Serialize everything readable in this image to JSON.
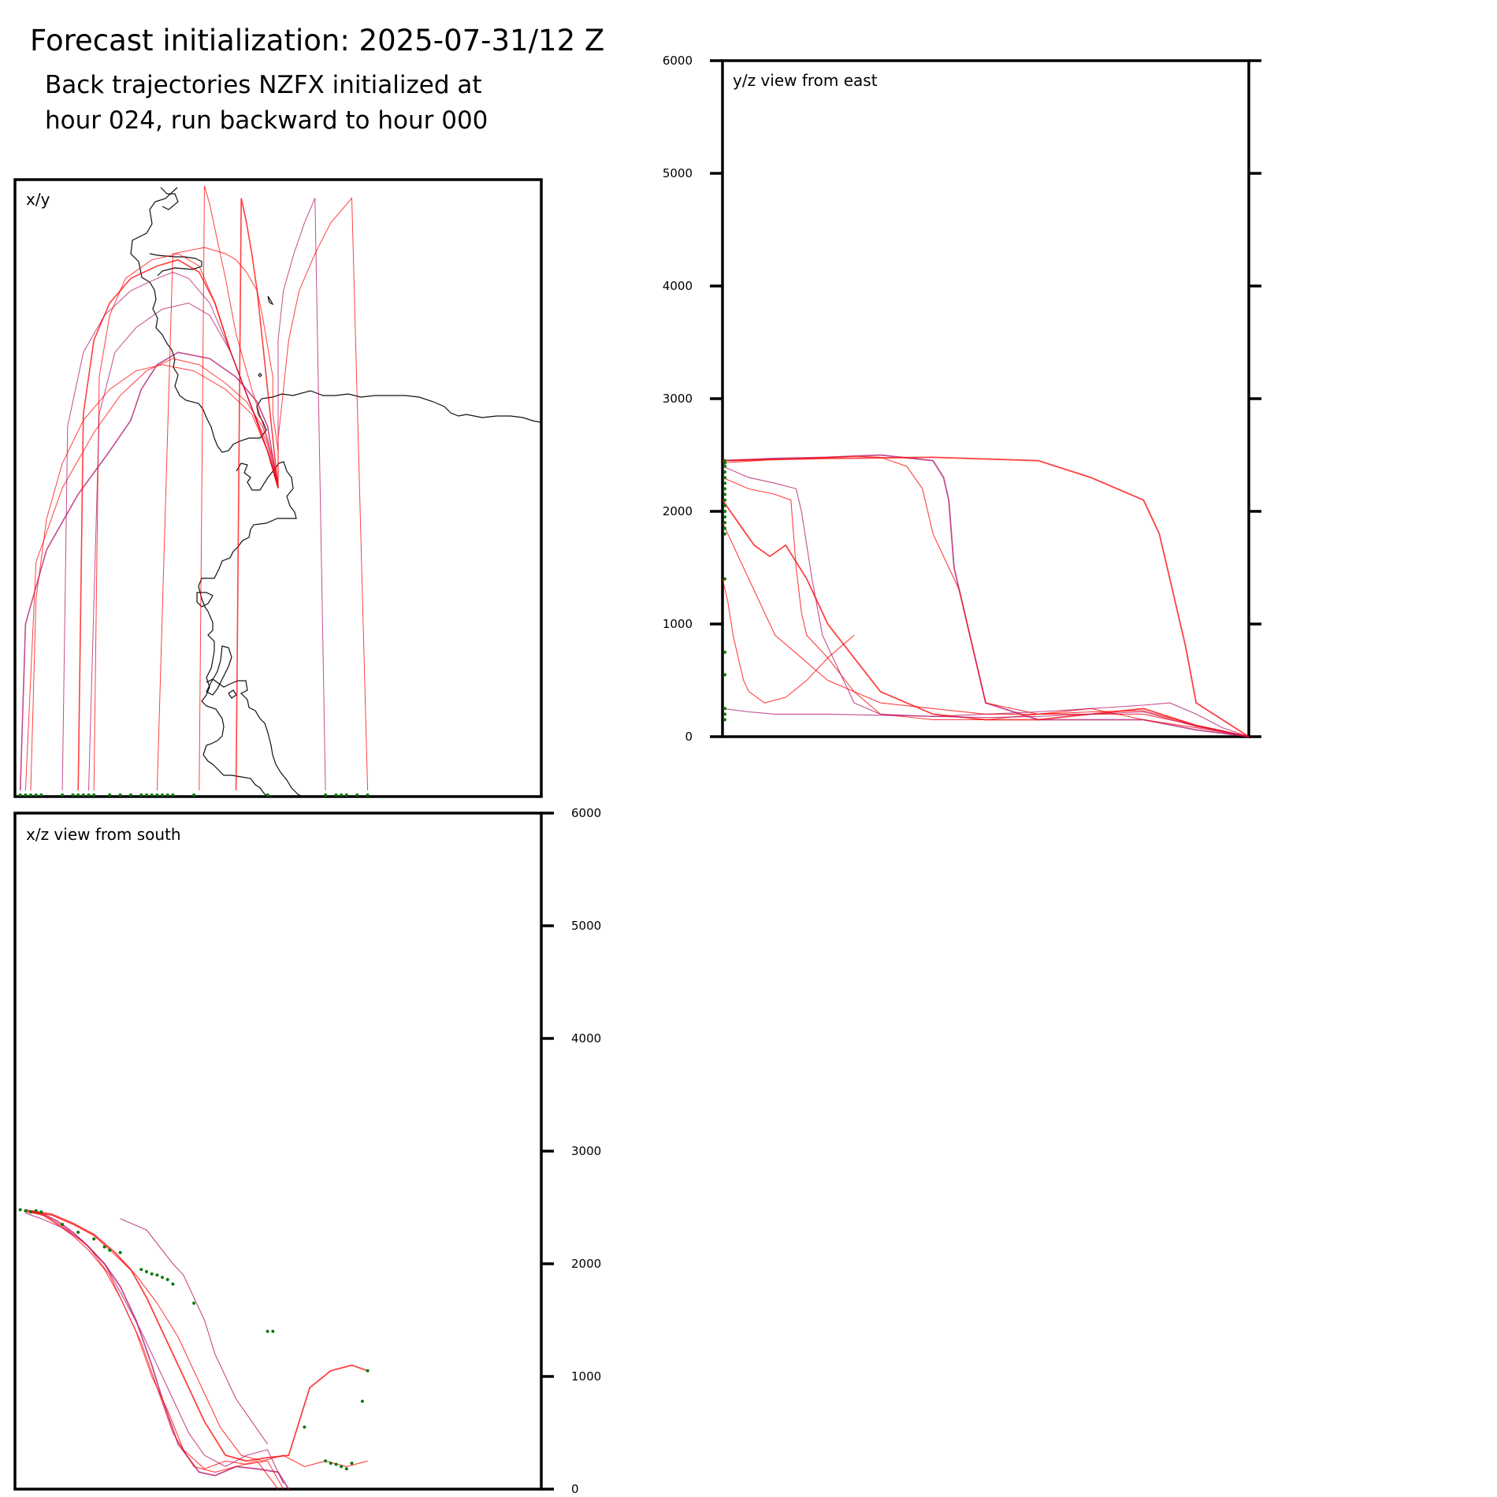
{
  "figure": {
    "title": "Forecast initialization: 2025-07-31/12 Z",
    "subtitle_line1": "Back trajectories NZFX initialized at",
    "subtitle_line2": "hour 024, run backward to hour 000"
  },
  "colors": {
    "axes": "#000000",
    "coastline": "#111111",
    "trajectory_low": "#ff0000",
    "trajectory_high": "#b0106a",
    "start_marker": "#0a7a0a"
  },
  "chart_data": [
    {
      "type": "line",
      "panel": "xy",
      "label": "x/y",
      "xlabel": "",
      "ylabel": "",
      "grid": false,
      "ticks": false,
      "description_of_traces": "coastline map with back trajectories fanning south-west from the release point",
      "series": [
        {
          "x": [
            50,
            49,
            48,
            46,
            42,
            37,
            31,
            27,
            24,
            22,
            18,
            12,
            6,
            2,
            1
          ],
          "y": [
            50,
            55,
            60,
            64,
            68,
            71,
            72,
            70,
            66,
            61,
            56,
            49,
            40,
            28,
            1
          ]
        },
        {
          "x": [
            50,
            49,
            47,
            44,
            40,
            35,
            30,
            25,
            20,
            15,
            9,
            4,
            2
          ],
          "y": [
            50,
            55,
            60,
            64,
            67,
            70,
            71,
            69,
            65,
            59,
            50,
            38,
            1
          ]
        },
        {
          "x": [
            50,
            48,
            45,
            40,
            34,
            28,
            23,
            18,
            13,
            9,
            6,
            4,
            3
          ],
          "y": [
            50,
            56,
            62,
            66,
            69,
            70,
            69,
            66,
            61,
            54,
            45,
            32,
            1
          ]
        },
        {
          "x": [
            50,
            48,
            45,
            41,
            37,
            33,
            30,
            27,
            22,
            17,
            13,
            10,
            9
          ],
          "y": [
            50,
            56,
            63,
            72,
            80,
            84,
            85,
            84,
            82,
            78,
            72,
            60,
            1
          ]
        },
        {
          "x": [
            50,
            48,
            45,
            41,
            38,
            35,
            31,
            27,
            22,
            18,
            15,
            13,
            12
          ],
          "y": [
            50,
            56,
            63,
            72,
            80,
            85,
            87,
            86,
            84,
            80,
            74,
            62,
            1
          ]
        },
        {
          "x": [
            50,
            48,
            45,
            41,
            38,
            35,
            31,
            26,
            21,
            18,
            16,
            15
          ],
          "y": [
            50,
            56,
            63,
            72,
            80,
            86,
            88,
            87,
            84,
            78,
            68,
            1
          ]
        },
        {
          "x": [
            50,
            48,
            45,
            41,
            37,
            33,
            28,
            23,
            19,
            16,
            14
          ],
          "y": [
            50,
            57,
            63,
            72,
            78,
            80,
            79,
            76,
            72,
            62,
            1
          ]
        },
        {
          "x": [
            50,
            48,
            45,
            42,
            40,
            38,
            37,
            36,
            35
          ],
          "y": [
            50,
            58,
            66,
            75,
            84,
            92,
            96,
            99,
            1
          ]
        },
        {
          "x": [
            50,
            49,
            48,
            47,
            46,
            45,
            44,
            43,
            42
          ],
          "y": [
            50,
            58,
            66,
            74,
            82,
            88,
            93,
            97,
            1
          ]
        },
        {
          "x": [
            50,
            50,
            50,
            50,
            51,
            53,
            55,
            57,
            59
          ],
          "y": [
            50,
            58,
            66,
            74,
            82,
            88,
            93,
            97,
            1
          ]
        },
        {
          "x": [
            50,
            50,
            51,
            52,
            54,
            57,
            60,
            64,
            67
          ],
          "y": [
            50,
            58,
            66,
            74,
            82,
            88,
            93,
            97,
            1
          ]
        },
        {
          "x": [
            50,
            50,
            49,
            49,
            48,
            47,
            46,
            44,
            42,
            40,
            36,
            30,
            27
          ],
          "y": [
            50,
            56,
            62,
            68,
            73,
            78,
            82,
            85,
            87,
            88,
            89,
            88,
            1
          ]
        }
      ],
      "start_markers_x": [
        1,
        2,
        3,
        4,
        5,
        9,
        11,
        12,
        13,
        14,
        15,
        18,
        20,
        22,
        24,
        25,
        26,
        27,
        28,
        29,
        30,
        34,
        48,
        59,
        61,
        62,
        63,
        65,
        67
      ]
    },
    {
      "type": "line",
      "panel": "yz",
      "label": "y/z view from east",
      "xlabel": "",
      "ylabel": "",
      "ylim": [
        0,
        6000
      ],
      "yticks": [
        0,
        1000,
        2000,
        3000,
        4000,
        5000,
        6000
      ],
      "ytick_labels": [
        "0",
        "1000",
        "2000",
        "3000",
        "4000",
        "5000",
        "6000"
      ],
      "grid": false,
      "series": [
        {
          "x": [
            0,
            10,
            20,
            30,
            40,
            42,
            43,
            44,
            50,
            60,
            70,
            80,
            90,
            100
          ],
          "y": [
            2450,
            2470,
            2480,
            2500,
            2450,
            2300,
            2100,
            1500,
            300,
            150,
            150,
            150,
            60,
            0
          ]
        },
        {
          "x": [
            0,
            10,
            20,
            25,
            30,
            35,
            38,
            40,
            45,
            50,
            60,
            70,
            80,
            90,
            100
          ],
          "y": [
            2430,
            2460,
            2480,
            2490,
            2480,
            2400,
            2200,
            1800,
            1300,
            300,
            200,
            200,
            200,
            100,
            0
          ]
        },
        {
          "x": [
            0,
            5,
            10,
            13,
            14,
            15,
            16,
            20,
            25,
            30,
            40,
            50,
            60,
            70,
            80,
            90,
            100
          ],
          "y": [
            2300,
            2200,
            2150,
            2100,
            1500,
            1100,
            900,
            700,
            400,
            200,
            150,
            150,
            200,
            250,
            150,
            80,
            0
          ]
        },
        {
          "x": [
            0,
            5,
            10,
            14,
            15,
            17,
            19,
            22,
            25,
            30,
            40,
            50,
            60,
            70,
            80,
            85,
            90,
            95,
            100
          ],
          "y": [
            2400,
            2300,
            2250,
            2200,
            2000,
            1400,
            900,
            600,
            300,
            200,
            180,
            200,
            220,
            250,
            280,
            300,
            200,
            80,
            0
          ]
        },
        {
          "x": [
            0,
            3,
            6,
            9,
            12,
            16,
            20,
            25,
            30,
            40,
            50,
            60,
            70,
            80,
            90,
            100
          ],
          "y": [
            2100,
            1900,
            1700,
            1600,
            1700,
            1400,
            1000,
            700,
            400,
            200,
            150,
            150,
            200,
            250,
            100,
            0
          ]
        },
        {
          "x": [
            0,
            2,
            4,
            6,
            8,
            10,
            15,
            20,
            30,
            40,
            50,
            60,
            70,
            80,
            90,
            100
          ],
          "y": [
            1900,
            1700,
            1500,
            1300,
            1100,
            900,
            700,
            500,
            300,
            250,
            200,
            200,
            220,
            230,
            100,
            0
          ]
        },
        {
          "x": [
            0,
            5,
            10,
            20,
            30,
            40,
            50,
            60,
            70,
            80,
            90,
            100
          ],
          "y": [
            250,
            220,
            200,
            200,
            190,
            180,
            170,
            180,
            200,
            220,
            90,
            0
          ]
        },
        {
          "x": [
            0,
            1,
            2,
            3,
            4,
            5,
            8,
            12,
            16,
            20,
            25
          ],
          "y": [
            1400,
            1200,
            900,
            700,
            500,
            400,
            300,
            350,
            500,
            700,
            900
          ]
        },
        {
          "x": [
            0,
            20,
            40,
            60,
            70,
            80,
            83,
            85,
            88,
            90,
            100
          ],
          "y": [
            2450,
            2470,
            2480,
            2450,
            2300,
            2100,
            1800,
            1400,
            800,
            300,
            0
          ]
        }
      ],
      "start_markers_y": [
        2450,
        2430,
        2400,
        2350,
        2300,
        2250,
        2200,
        2150,
        2100,
        2050,
        2000,
        1950,
        1900,
        1850,
        1800,
        1400,
        750,
        550,
        250,
        200,
        150
      ]
    },
    {
      "type": "line",
      "panel": "xz",
      "label": "x/z view from south",
      "xlabel": "",
      "ylabel": "",
      "ylim": [
        0,
        6000
      ],
      "yticks": [
        0,
        1000,
        2000,
        3000,
        4000,
        5000,
        6000
      ],
      "ytick_labels": [
        "0",
        "1000",
        "2000",
        "3000",
        "4000",
        "5000",
        "6000"
      ],
      "grid": false,
      "series": [
        {
          "x": [
            2,
            5,
            8,
            11,
            14,
            17,
            20,
            23,
            26,
            28,
            31,
            35,
            38,
            42,
            46,
            50,
            52
          ],
          "y": [
            2480,
            2450,
            2380,
            2280,
            2150,
            2000,
            1800,
            1500,
            1100,
            800,
            400,
            150,
            120,
            200,
            180,
            150,
            0
          ]
        },
        {
          "x": [
            2,
            5,
            8,
            11,
            14,
            17,
            20,
            23,
            26,
            29,
            32,
            36,
            40,
            44,
            48,
            51
          ],
          "y": [
            2460,
            2440,
            2350,
            2250,
            2120,
            1950,
            1700,
            1400,
            1000,
            700,
            350,
            180,
            250,
            220,
            250,
            0
          ]
        },
        {
          "x": [
            2,
            6,
            10,
            14,
            18,
            21,
            24,
            27,
            30,
            34,
            38,
            42,
            46,
            50
          ],
          "y": [
            2470,
            2420,
            2300,
            2150,
            1900,
            1600,
            1300,
            900,
            500,
            200,
            150,
            200,
            250,
            0
          ]
        },
        {
          "x": [
            2,
            5,
            9,
            13,
            17,
            20,
            24,
            27,
            30,
            33,
            36,
            40,
            44,
            48,
            51
          ],
          "y": [
            2450,
            2400,
            2320,
            2200,
            2000,
            1750,
            1400,
            1100,
            800,
            500,
            300,
            200,
            300,
            350,
            50
          ]
        },
        {
          "x": [
            3,
            7,
            11,
            15,
            19,
            22,
            25,
            28,
            32,
            36,
            40,
            44,
            48,
            52,
            56,
            60,
            64,
            67
          ],
          "y": [
            2470,
            2440,
            2360,
            2260,
            2100,
            1950,
            1700,
            1400,
            1000,
            600,
            300,
            250,
            280,
            300,
            900,
            1050,
            1100,
            1050
          ]
        },
        {
          "x": [
            3,
            7,
            11,
            15,
            19,
            23,
            27,
            31,
            35,
            39,
            43,
            47,
            51,
            55,
            59,
            63,
            67
          ],
          "y": [
            2460,
            2430,
            2350,
            2250,
            2080,
            1900,
            1650,
            1350,
            950,
            550,
            300,
            250,
            300,
            200,
            250,
            200,
            250
          ]
        },
        {
          "x": [
            20,
            25,
            30,
            32,
            34,
            36,
            38,
            40,
            42,
            45,
            48
          ],
          "y": [
            2400,
            2300,
            2000,
            1900,
            1700,
            1500,
            1200,
            1000,
            800,
            600,
            400
          ]
        }
      ],
      "start_markers": [
        {
          "x": 1,
          "y": 2480
        },
        {
          "x": 2,
          "y": 2470
        },
        {
          "x": 3,
          "y": 2460
        },
        {
          "x": 4,
          "y": 2470
        },
        {
          "x": 5,
          "y": 2460
        },
        {
          "x": 9,
          "y": 2350
        },
        {
          "x": 12,
          "y": 2280
        },
        {
          "x": 15,
          "y": 2220
        },
        {
          "x": 17,
          "y": 2150
        },
        {
          "x": 18,
          "y": 2120
        },
        {
          "x": 20,
          "y": 2100
        },
        {
          "x": 24,
          "y": 1950
        },
        {
          "x": 25,
          "y": 1930
        },
        {
          "x": 26,
          "y": 1910
        },
        {
          "x": 27,
          "y": 1900
        },
        {
          "x": 28,
          "y": 1880
        },
        {
          "x": 29,
          "y": 1860
        },
        {
          "x": 30,
          "y": 1820
        },
        {
          "x": 34,
          "y": 1650
        },
        {
          "x": 48,
          "y": 1400
        },
        {
          "x": 49,
          "y": 1400
        },
        {
          "x": 55,
          "y": 550
        },
        {
          "x": 59,
          "y": 250
        },
        {
          "x": 60,
          "y": 230
        },
        {
          "x": 61,
          "y": 220
        },
        {
          "x": 62,
          "y": 200
        },
        {
          "x": 63,
          "y": 180
        },
        {
          "x": 64,
          "y": 230
        },
        {
          "x": 66,
          "y": 780
        },
        {
          "x": 67,
          "y": 1050
        }
      ]
    }
  ]
}
